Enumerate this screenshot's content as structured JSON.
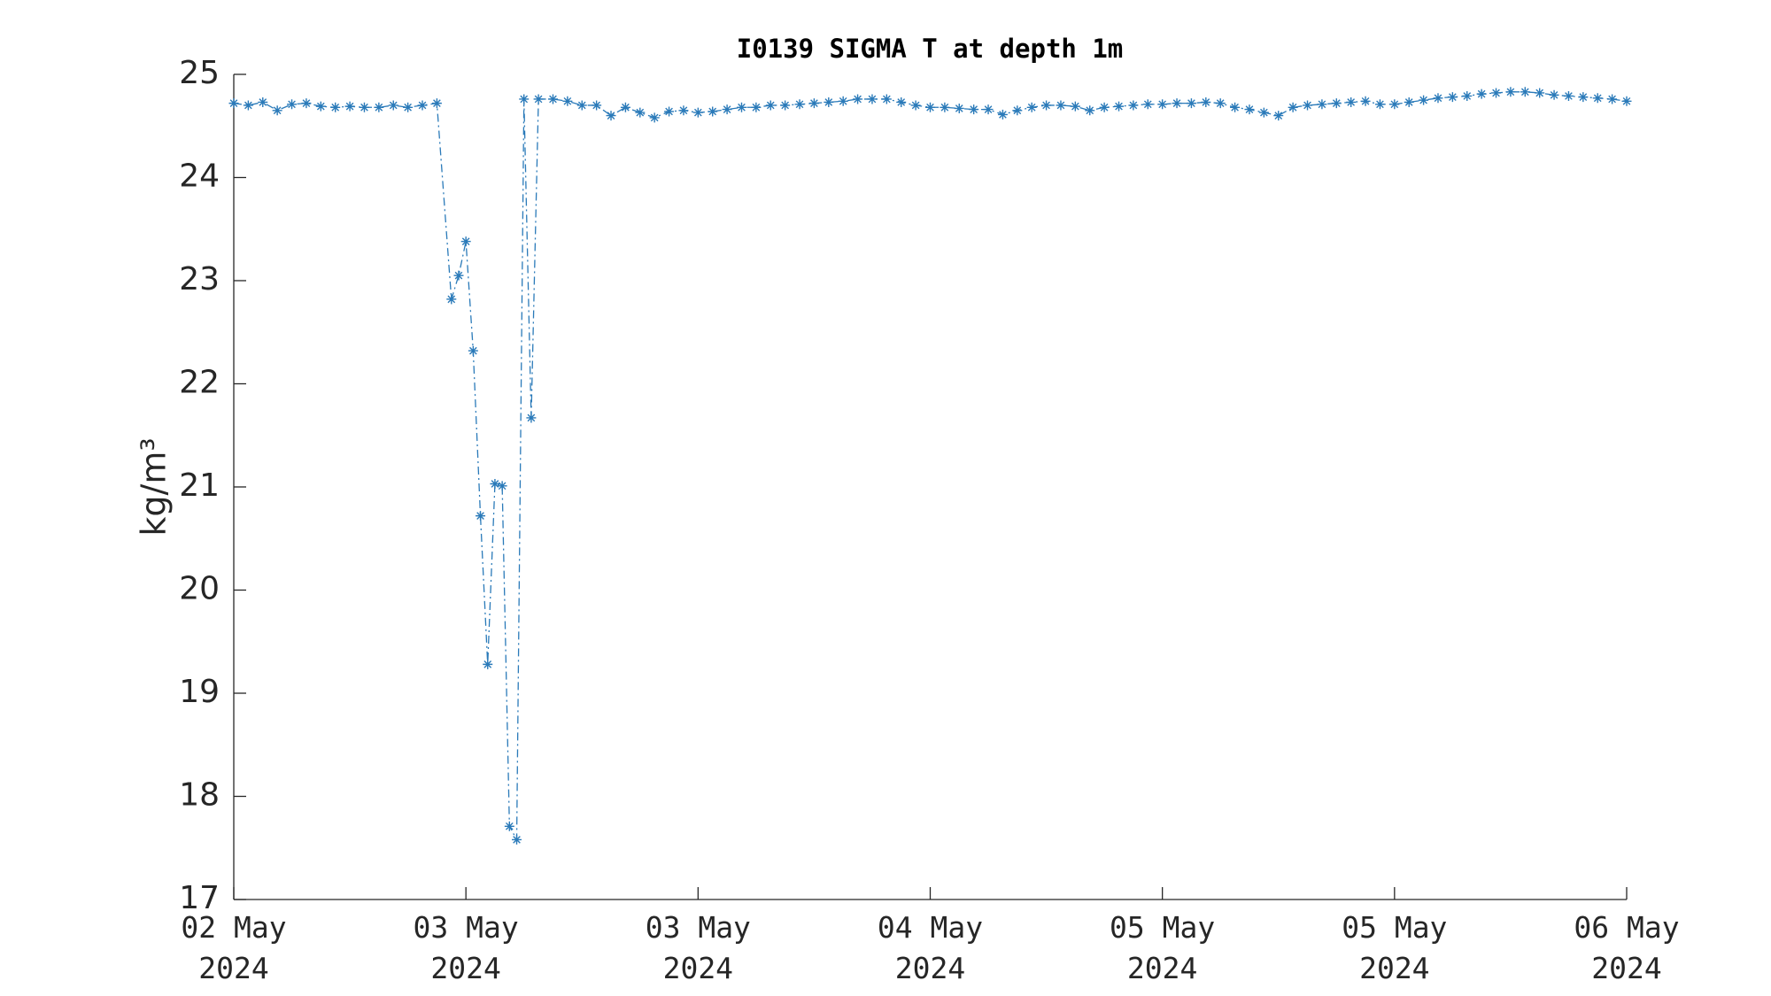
{
  "chart_data": {
    "type": "line",
    "title": "I0139 SIGMA T at depth 1m",
    "ylabel": "kg/m³",
    "x": [
      0,
      1,
      2,
      3,
      4,
      5,
      6,
      7,
      8,
      9,
      10,
      11,
      12,
      13,
      14,
      15,
      15.5,
      16,
      16.5,
      17,
      17.5,
      18,
      18.5,
      19,
      19.5,
      20,
      20.5,
      21,
      22,
      23,
      24,
      25,
      26,
      27,
      28,
      29,
      30,
      31,
      32,
      33,
      34,
      35,
      36,
      37,
      38,
      39,
      40,
      41,
      42,
      43,
      44,
      45,
      46,
      47,
      48,
      49,
      50,
      51,
      52,
      53,
      54,
      55,
      56,
      57,
      58,
      59,
      60,
      61,
      62,
      63,
      64,
      65,
      66,
      67,
      68,
      69,
      70,
      71,
      72,
      73,
      74,
      75,
      76,
      77,
      78,
      79,
      80,
      81,
      82,
      83,
      84,
      85,
      86,
      87,
      88,
      89,
      90,
      91,
      92,
      93,
      94,
      95,
      96
    ],
    "series": [
      {
        "name": "SIGMA T",
        "color": "#2a7ab9",
        "values": [
          24.72,
          24.7,
          24.73,
          24.65,
          24.71,
          24.72,
          24.69,
          24.68,
          24.69,
          24.68,
          24.68,
          24.7,
          24.68,
          24.7,
          24.72,
          22.82,
          23.05,
          23.38,
          22.32,
          20.72,
          19.28,
          21.03,
          21.01,
          17.71,
          17.58,
          24.76,
          21.67,
          24.76,
          24.76,
          24.74,
          24.7,
          24.7,
          24.6,
          24.68,
          24.63,
          24.58,
          24.64,
          24.65,
          24.63,
          24.64,
          24.66,
          24.68,
          24.68,
          24.7,
          24.7,
          24.71,
          24.72,
          24.73,
          24.74,
          24.76,
          24.76,
          24.76,
          24.73,
          24.7,
          24.68,
          24.68,
          24.67,
          24.66,
          24.66,
          24.61,
          24.65,
          24.68,
          24.7,
          24.7,
          24.69,
          24.65,
          24.68,
          24.69,
          24.7,
          24.71,
          24.71,
          24.72,
          24.72,
          24.73,
          24.72,
          24.68,
          24.66,
          24.63,
          24.6,
          24.68,
          24.7,
          24.71,
          24.72,
          24.73,
          24.74,
          24.71,
          24.71,
          24.73,
          24.75,
          24.77,
          24.78,
          24.79,
          24.81,
          24.82,
          24.83,
          24.83,
          24.82,
          24.8,
          24.79,
          24.78,
          24.77,
          24.76,
          24.74
        ]
      }
    ],
    "xlim": [
      0,
      96
    ],
    "xticks": [
      {
        "value": 0,
        "label": "02 May 2024"
      },
      {
        "value": 16,
        "label": "03 May 2024"
      },
      {
        "value": 32,
        "label": "03 May 2024"
      },
      {
        "value": 48,
        "label": "04 May 2024"
      },
      {
        "value": 64,
        "label": "05 May 2024"
      },
      {
        "value": 80,
        "label": "05 May 2024"
      },
      {
        "value": 96,
        "label": "06 May 2024"
      }
    ],
    "ylim": [
      17,
      25
    ],
    "yticks": [
      17,
      18,
      19,
      20,
      21,
      22,
      23,
      24,
      25
    ]
  }
}
